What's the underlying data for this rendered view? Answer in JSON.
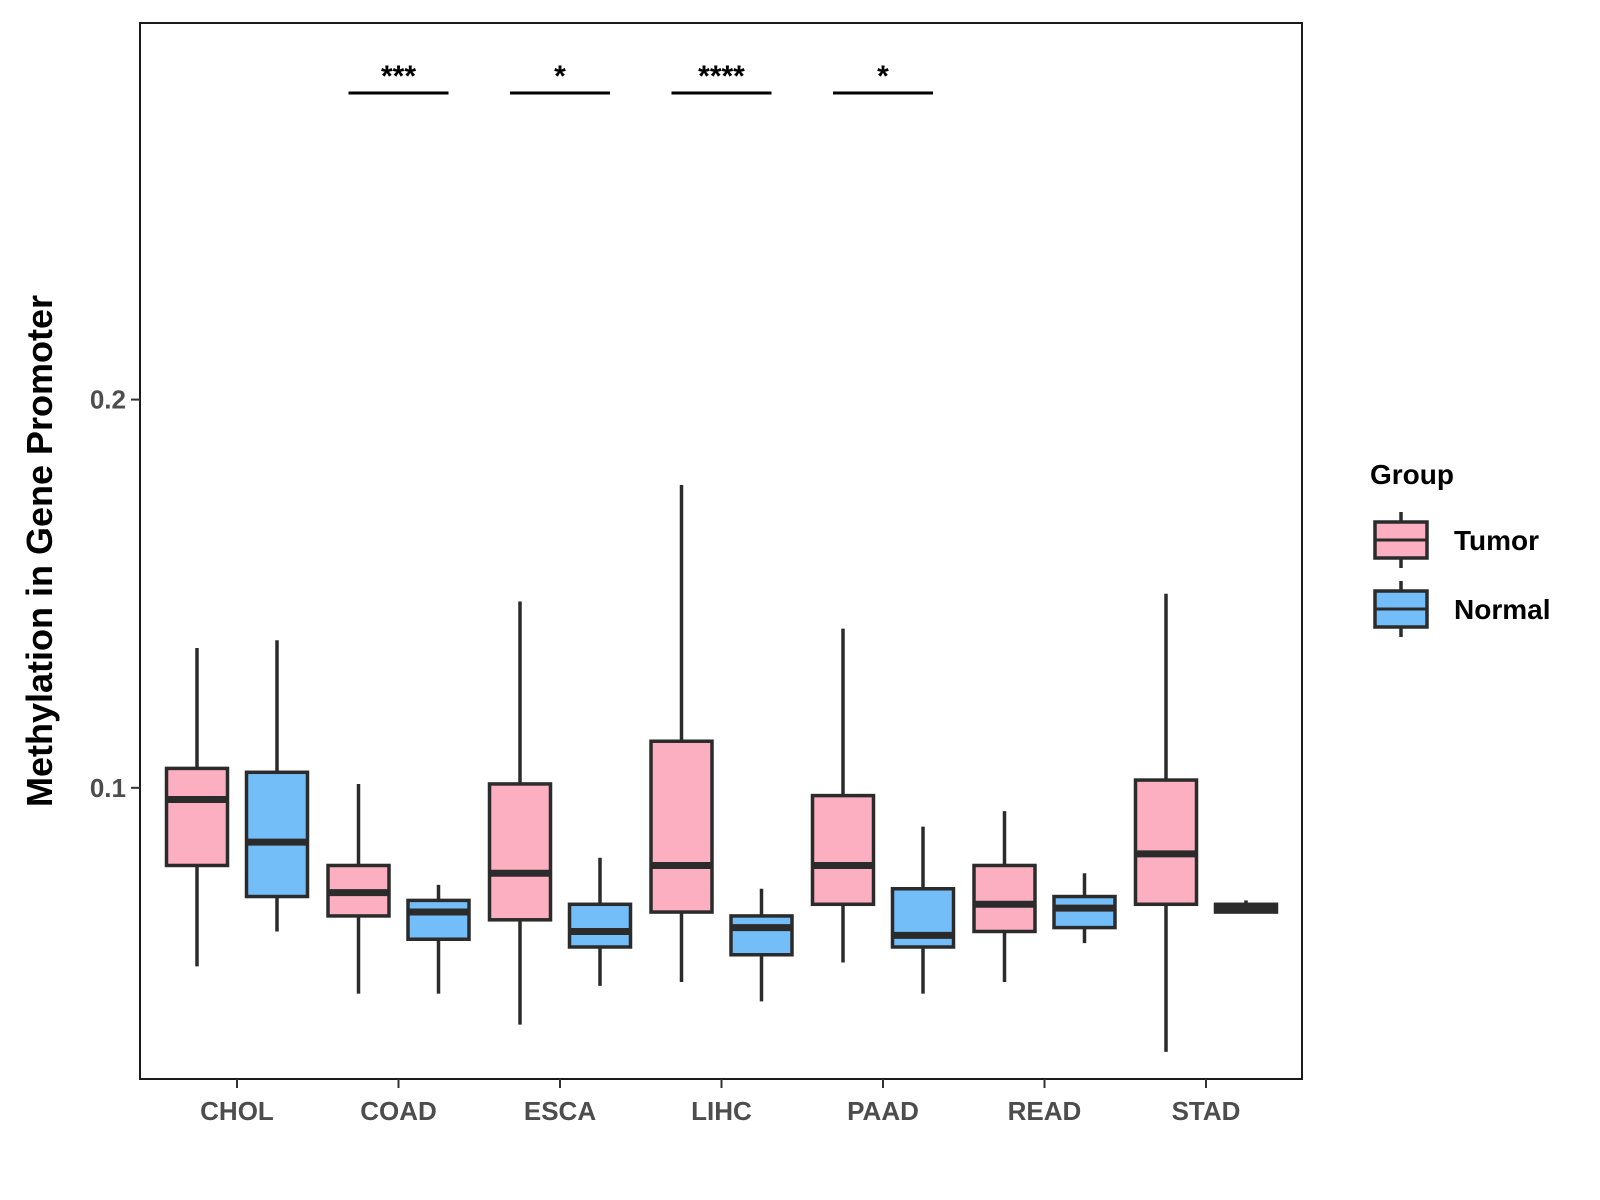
{
  "chart_data": {
    "type": "boxplot",
    "title": "",
    "xlabel": "",
    "ylabel": "Methylation in Gene Promoter",
    "ylim": [
      0.025,
      0.297
    ],
    "yticks": [
      0.1,
      0.2
    ],
    "ytick_labels": [
      "0.1",
      "0.2"
    ],
    "categories": [
      "CHOL",
      "COAD",
      "ESCA",
      "LIHC",
      "PAAD",
      "READ",
      "STAD"
    ],
    "grid": false,
    "legend": {
      "title": "Group",
      "position": "right",
      "entries": [
        {
          "name": "Tumor",
          "color": "#FBAFC1"
        },
        {
          "name": "Normal",
          "color": "#73BEF8"
        }
      ]
    },
    "series": [
      {
        "name": "Tumor",
        "color": "#FBAFC1",
        "boxes": [
          {
            "category": "CHOL",
            "min": 0.054,
            "q1": 0.08,
            "median": 0.097,
            "q3": 0.105,
            "max": 0.136
          },
          {
            "category": "COAD",
            "min": 0.047,
            "q1": 0.067,
            "median": 0.073,
            "q3": 0.08,
            "max": 0.101
          },
          {
            "category": "ESCA",
            "min": 0.039,
            "q1": 0.066,
            "median": 0.078,
            "q3": 0.101,
            "max": 0.148
          },
          {
            "category": "LIHC",
            "min": 0.05,
            "q1": 0.068,
            "median": 0.08,
            "q3": 0.112,
            "max": 0.178
          },
          {
            "category": "PAAD",
            "min": 0.055,
            "q1": 0.07,
            "median": 0.08,
            "q3": 0.098,
            "max": 0.141
          },
          {
            "category": "READ",
            "min": 0.05,
            "q1": 0.063,
            "median": 0.07,
            "q3": 0.08,
            "max": 0.094
          },
          {
            "category": "STAD",
            "min": 0.032,
            "q1": 0.07,
            "median": 0.083,
            "q3": 0.102,
            "max": 0.15
          }
        ]
      },
      {
        "name": "Normal",
        "color": "#73BEF8",
        "boxes": [
          {
            "category": "CHOL",
            "min": 0.063,
            "q1": 0.072,
            "median": 0.086,
            "q3": 0.104,
            "max": 0.138
          },
          {
            "category": "COAD",
            "min": 0.047,
            "q1": 0.061,
            "median": 0.068,
            "q3": 0.071,
            "max": 0.075
          },
          {
            "category": "ESCA",
            "min": 0.049,
            "q1": 0.059,
            "median": 0.063,
            "q3": 0.07,
            "max": 0.082
          },
          {
            "category": "LIHC",
            "min": 0.045,
            "q1": 0.057,
            "median": 0.064,
            "q3": 0.067,
            "max": 0.074
          },
          {
            "category": "PAAD",
            "min": 0.047,
            "q1": 0.059,
            "median": 0.062,
            "q3": 0.074,
            "max": 0.09
          },
          {
            "category": "READ",
            "min": 0.06,
            "q1": 0.064,
            "median": 0.069,
            "q3": 0.072,
            "max": 0.078
          },
          {
            "category": "STAD",
            "min": 0.068,
            "q1": 0.068,
            "median": 0.069,
            "q3": 0.07,
            "max": 0.071
          }
        ]
      }
    ],
    "significance": [
      {
        "category": "COAD",
        "label": "***"
      },
      {
        "category": "ESCA",
        "label": "*"
      },
      {
        "category": "LIHC",
        "label": "****"
      },
      {
        "category": "PAAD",
        "label": "*"
      }
    ]
  }
}
